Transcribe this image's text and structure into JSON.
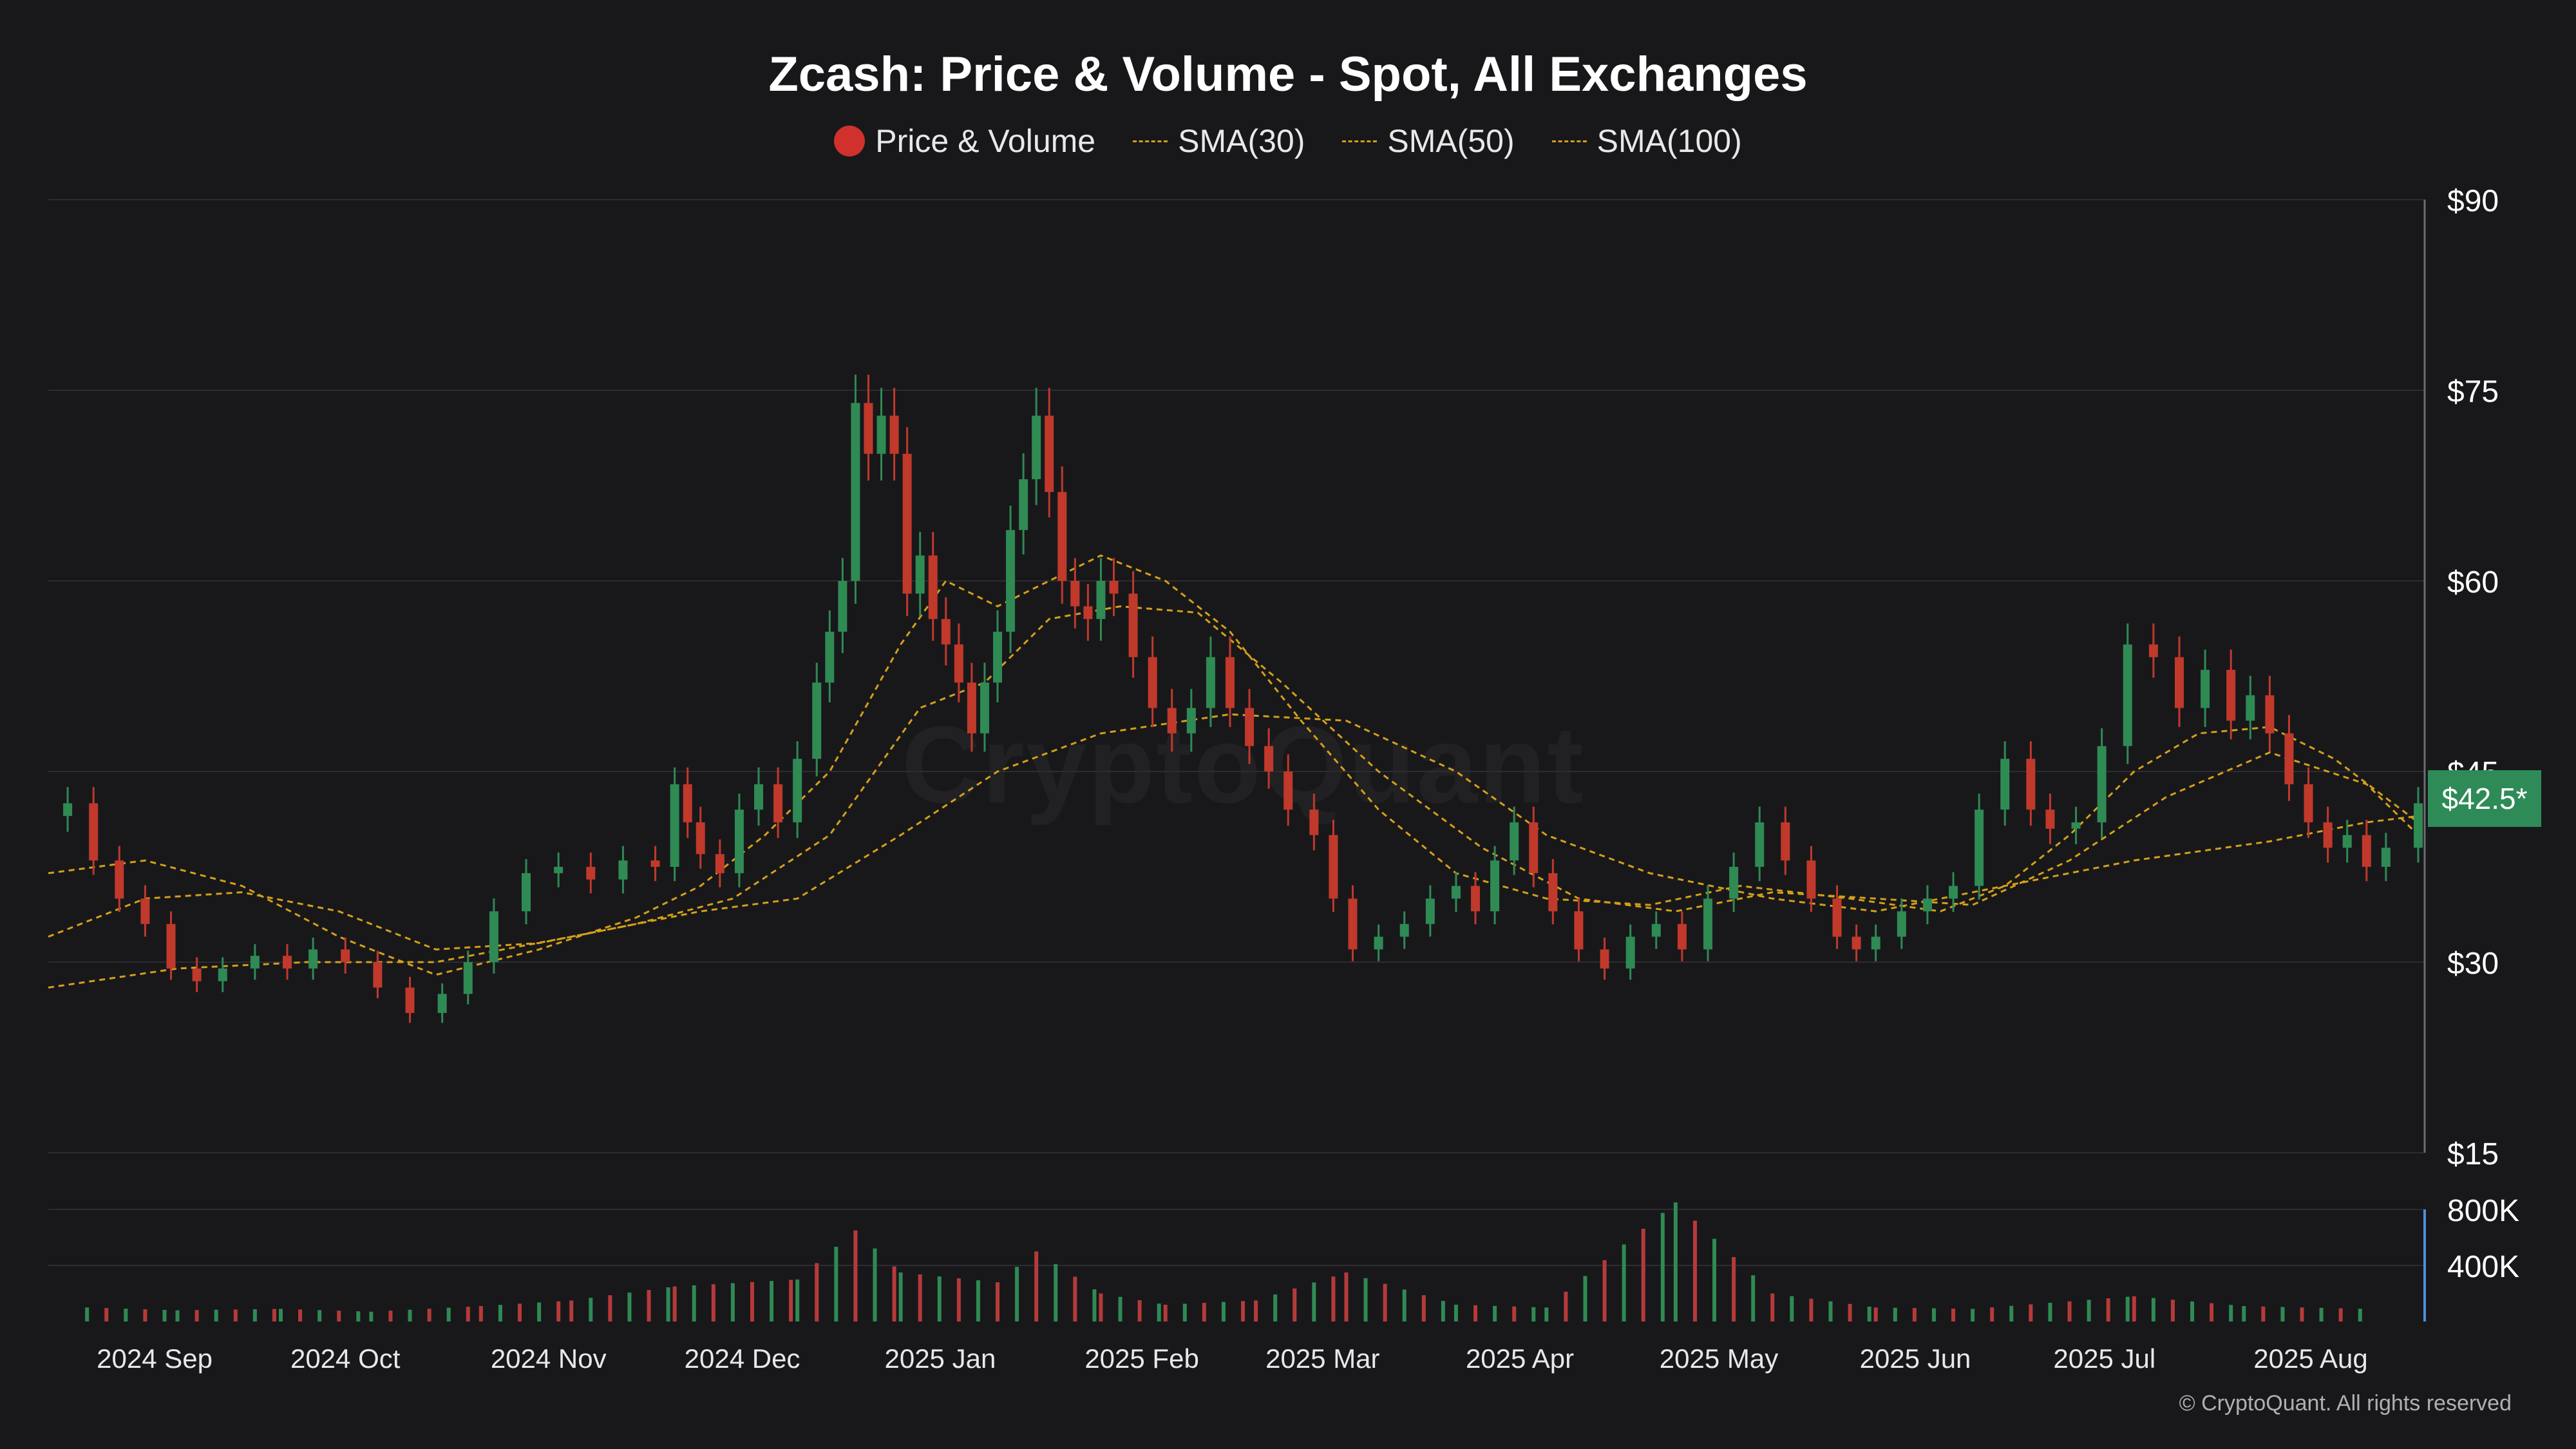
{
  "chart_data": {
    "type": "candlestick",
    "title": "Zcash: Price & Volume - Spot, All Exchanges",
    "legend": [
      {
        "name": "Price & Volume",
        "marker": "dot",
        "color": "#d0312d"
      },
      {
        "name": "SMA(30)",
        "marker": "dashed-line",
        "color": "#d4a017"
      },
      {
        "name": "SMA(50)",
        "marker": "dashed-line",
        "color": "#d4a017"
      },
      {
        "name": "SMA(100)",
        "marker": "dashed-line",
        "color": "#d4a017"
      }
    ],
    "legend_position": "top-center",
    "price_axis": {
      "position": "right",
      "ticks": [
        "$90",
        "$75",
        "$60",
        "$45",
        "$30",
        "$15"
      ],
      "range": [
        15,
        90
      ]
    },
    "volume_axis": {
      "position": "right",
      "ticks": [
        "800K",
        "400K"
      ],
      "range": [
        0,
        800000
      ]
    },
    "x_axis": {
      "range": [
        "2024-08-26",
        "2025-08-28"
      ],
      "ticks": [
        {
          "label": "2024 Sep",
          "date": "2024-09-01"
        },
        {
          "label": "2024 Oct",
          "date": "2024-10-01"
        },
        {
          "label": "2024 Nov",
          "date": "2024-11-01"
        },
        {
          "label": "2024 Dec",
          "date": "2024-12-01"
        },
        {
          "label": "2025 Jan",
          "date": "2025-01-01"
        },
        {
          "label": "2025 Feb",
          "date": "2025-02-01"
        },
        {
          "label": "2025 Mar",
          "date": "2025-03-01"
        },
        {
          "label": "2025 Apr",
          "date": "2025-04-01"
        },
        {
          "label": "2025 May",
          "date": "2025-05-01"
        },
        {
          "label": "2025 Jun",
          "date": "2025-06-01"
        },
        {
          "label": "2025 Jul",
          "date": "2025-07-01"
        },
        {
          "label": "2025 Aug",
          "date": "2025-08-01"
        }
      ]
    },
    "grid": true,
    "current_price_label": "$42.5*",
    "price_series": {
      "name": "Price & Volume",
      "points": [
        [
          "2024-08-26",
          41.5
        ],
        [
          "2024-08-29",
          42.5
        ],
        [
          "2024-09-02",
          38
        ],
        [
          "2024-09-06",
          35
        ],
        [
          "2024-09-10",
          33
        ],
        [
          "2024-09-14",
          29.5
        ],
        [
          "2024-09-18",
          28.5
        ],
        [
          "2024-09-22",
          29.5
        ],
        [
          "2024-09-27",
          30.5
        ],
        [
          "2024-10-02",
          29.5
        ],
        [
          "2024-10-06",
          31
        ],
        [
          "2024-10-11",
          30
        ],
        [
          "2024-10-16",
          28
        ],
        [
          "2024-10-21",
          26
        ],
        [
          "2024-10-26",
          27.5
        ],
        [
          "2024-10-30",
          30
        ],
        [
          "2024-11-03",
          34
        ],
        [
          "2024-11-08",
          37
        ],
        [
          "2024-11-13",
          37.5
        ],
        [
          "2024-11-18",
          36.5
        ],
        [
          "2024-11-23",
          38
        ],
        [
          "2024-11-28",
          37.5
        ],
        [
          "2024-12-01",
          44
        ],
        [
          "2024-12-03",
          41
        ],
        [
          "2024-12-05",
          38.5
        ],
        [
          "2024-12-08",
          37
        ],
        [
          "2024-12-11",
          42
        ],
        [
          "2024-12-14",
          44
        ],
        [
          "2024-12-17",
          41
        ],
        [
          "2024-12-20",
          46
        ],
        [
          "2024-12-23",
          52
        ],
        [
          "2024-12-25",
          56
        ],
        [
          "2024-12-27",
          60
        ],
        [
          "2024-12-29",
          74
        ],
        [
          "2024-12-31",
          70
        ],
        [
          "2025-01-02",
          73
        ],
        [
          "2025-01-04",
          70
        ],
        [
          "2025-01-06",
          59
        ],
        [
          "2025-01-08",
          62
        ],
        [
          "2025-01-10",
          57
        ],
        [
          "2025-01-12",
          55
        ],
        [
          "2025-01-14",
          52
        ],
        [
          "2025-01-16",
          48
        ],
        [
          "2025-01-18",
          52
        ],
        [
          "2025-01-20",
          56
        ],
        [
          "2025-01-22",
          64
        ],
        [
          "2025-01-24",
          68
        ],
        [
          "2025-01-26",
          73
        ],
        [
          "2025-01-28",
          67
        ],
        [
          "2025-01-30",
          60
        ],
        [
          "2025-02-01",
          58
        ],
        [
          "2025-02-03",
          57
        ],
        [
          "2025-02-05",
          60
        ],
        [
          "2025-02-07",
          59
        ],
        [
          "2025-02-10",
          54
        ],
        [
          "2025-02-13",
          50
        ],
        [
          "2025-02-16",
          48
        ],
        [
          "2025-02-19",
          50
        ],
        [
          "2025-02-22",
          54
        ],
        [
          "2025-02-25",
          50
        ],
        [
          "2025-02-28",
          47
        ],
        [
          "2025-03-03",
          45
        ],
        [
          "2025-03-06",
          42
        ],
        [
          "2025-03-10",
          40
        ],
        [
          "2025-03-13",
          35
        ],
        [
          "2025-03-16",
          31
        ],
        [
          "2025-03-20",
          32
        ],
        [
          "2025-03-24",
          33
        ],
        [
          "2025-03-28",
          35
        ],
        [
          "2025-04-01",
          36
        ],
        [
          "2025-04-04",
          34
        ],
        [
          "2025-04-07",
          38
        ],
        [
          "2025-04-10",
          41
        ],
        [
          "2025-04-13",
          37
        ],
        [
          "2025-04-16",
          34
        ],
        [
          "2025-04-20",
          31
        ],
        [
          "2025-04-24",
          29.5
        ],
        [
          "2025-04-28",
          32
        ],
        [
          "2025-05-02",
          33
        ],
        [
          "2025-05-06",
          31
        ],
        [
          "2025-05-10",
          35
        ],
        [
          "2025-05-14",
          37.5
        ],
        [
          "2025-05-18",
          41
        ],
        [
          "2025-05-22",
          38
        ],
        [
          "2025-05-26",
          35
        ],
        [
          "2025-05-30",
          32
        ],
        [
          "2025-06-02",
          31
        ],
        [
          "2025-06-05",
          32
        ],
        [
          "2025-06-09",
          34
        ],
        [
          "2025-06-13",
          35
        ],
        [
          "2025-06-17",
          36
        ],
        [
          "2025-06-21",
          42
        ],
        [
          "2025-06-25",
          46
        ],
        [
          "2025-06-29",
          42
        ],
        [
          "2025-07-02",
          40.5
        ],
        [
          "2025-07-06",
          41
        ],
        [
          "2025-07-10",
          47
        ],
        [
          "2025-07-14",
          55
        ],
        [
          "2025-07-18",
          54
        ],
        [
          "2025-07-22",
          50
        ],
        [
          "2025-07-26",
          53
        ],
        [
          "2025-07-30",
          49
        ],
        [
          "2025-08-02",
          51
        ],
        [
          "2025-08-05",
          48
        ],
        [
          "2025-08-08",
          44
        ],
        [
          "2025-08-11",
          41
        ],
        [
          "2025-08-14",
          39
        ],
        [
          "2025-08-17",
          40
        ],
        [
          "2025-08-20",
          37.5
        ],
        [
          "2025-08-23",
          39
        ],
        [
          "2025-08-28",
          42.5
        ]
      ]
    },
    "sma_series": [
      {
        "name": "SMA(30)",
        "points": [
          [
            "2024-08-26",
            37
          ],
          [
            "2024-09-10",
            38
          ],
          [
            "2024-09-25",
            36
          ],
          [
            "2024-10-10",
            32
          ],
          [
            "2024-10-25",
            29
          ],
          [
            "2024-11-10",
            31
          ],
          [
            "2024-11-25",
            33.5
          ],
          [
            "2024-12-05",
            36
          ],
          [
            "2024-12-15",
            40
          ],
          [
            "2024-12-25",
            45
          ],
          [
            "2025-01-05",
            55
          ],
          [
            "2025-01-12",
            60
          ],
          [
            "2025-01-20",
            58
          ],
          [
            "2025-01-28",
            60
          ],
          [
            "2025-02-05",
            62
          ],
          [
            "2025-02-15",
            60
          ],
          [
            "2025-02-25",
            56
          ],
          [
            "2025-03-08",
            49
          ],
          [
            "2025-03-20",
            42
          ],
          [
            "2025-04-01",
            37
          ],
          [
            "2025-04-15",
            35
          ],
          [
            "2025-05-01",
            34.5
          ],
          [
            "2025-05-15",
            36
          ],
          [
            "2025-06-01",
            35
          ],
          [
            "2025-06-15",
            34
          ],
          [
            "2025-06-25",
            36
          ],
          [
            "2025-07-05",
            40
          ],
          [
            "2025-07-15",
            45
          ],
          [
            "2025-07-25",
            48
          ],
          [
            "2025-08-05",
            48.5
          ],
          [
            "2025-08-15",
            46
          ],
          [
            "2025-08-28",
            41
          ]
        ]
      },
      {
        "name": "SMA(50)",
        "points": [
          [
            "2024-08-26",
            32
          ],
          [
            "2024-09-10",
            35
          ],
          [
            "2024-09-25",
            35.5
          ],
          [
            "2024-10-10",
            34
          ],
          [
            "2024-10-25",
            31
          ],
          [
            "2024-11-10",
            31.5
          ],
          [
            "2024-11-25",
            33
          ],
          [
            "2024-12-10",
            35
          ],
          [
            "2024-12-25",
            40
          ],
          [
            "2025-01-08",
            50
          ],
          [
            "2025-01-18",
            52
          ],
          [
            "2025-01-28",
            57
          ],
          [
            "2025-02-08",
            58
          ],
          [
            "2025-02-20",
            57.5
          ],
          [
            "2025-03-05",
            52
          ],
          [
            "2025-03-20",
            45
          ],
          [
            "2025-04-05",
            39
          ],
          [
            "2025-04-20",
            35
          ],
          [
            "2025-05-05",
            34
          ],
          [
            "2025-05-20",
            35.5
          ],
          [
            "2025-06-05",
            35
          ],
          [
            "2025-06-20",
            34.5
          ],
          [
            "2025-07-05",
            38
          ],
          [
            "2025-07-20",
            43
          ],
          [
            "2025-08-05",
            46.5
          ],
          [
            "2025-08-20",
            44
          ],
          [
            "2025-08-28",
            40
          ]
        ]
      },
      {
        "name": "SMA(100)",
        "points": [
          [
            "2024-08-26",
            28
          ],
          [
            "2024-09-15",
            29.5
          ],
          [
            "2024-10-05",
            30
          ],
          [
            "2024-10-25",
            30
          ],
          [
            "2024-11-15",
            32
          ],
          [
            "2024-12-05",
            34
          ],
          [
            "2024-12-20",
            35
          ],
          [
            "2025-01-05",
            40
          ],
          [
            "2025-01-20",
            45
          ],
          [
            "2025-02-05",
            48
          ],
          [
            "2025-02-25",
            49.5
          ],
          [
            "2025-03-15",
            49
          ],
          [
            "2025-04-01",
            45
          ],
          [
            "2025-04-15",
            40
          ],
          [
            "2025-05-01",
            37
          ],
          [
            "2025-05-20",
            35
          ],
          [
            "2025-06-05",
            34
          ],
          [
            "2025-06-25",
            36
          ],
          [
            "2025-07-15",
            38
          ],
          [
            "2025-08-05",
            39.5
          ],
          [
            "2025-08-20",
            41
          ],
          [
            "2025-08-28",
            41.5
          ]
        ]
      }
    ],
    "volume_series": {
      "name": "Volume",
      "unit": "K",
      "points": [
        [
          "2024-09-01",
          100
        ],
        [
          "2024-09-15",
          80
        ],
        [
          "2024-10-01",
          90
        ],
        [
          "2024-10-15",
          70
        ],
        [
          "2024-11-01",
          110
        ],
        [
          "2024-11-15",
          150
        ],
        [
          "2024-12-01",
          250
        ],
        [
          "2024-12-20",
          300
        ],
        [
          "2024-12-29",
          650
        ],
        [
          "2025-01-05",
          350
        ],
        [
          "2025-01-20",
          280
        ],
        [
          "2025-01-26",
          500
        ],
        [
          "2025-02-05",
          200
        ],
        [
          "2025-02-15",
          120
        ],
        [
          "2025-03-01",
          150
        ],
        [
          "2025-03-15",
          350
        ],
        [
          "2025-04-01",
          120
        ],
        [
          "2025-04-15",
          100
        ],
        [
          "2025-05-05",
          850
        ],
        [
          "2025-05-20",
          200
        ],
        [
          "2025-06-05",
          100
        ],
        [
          "2025-06-20",
          90
        ],
        [
          "2025-07-15",
          180
        ],
        [
          "2025-08-01",
          110
        ],
        [
          "2025-08-20",
          90
        ]
      ]
    }
  },
  "watermark": "CryptoQuant",
  "copyright": "© CryptoQuant. All rights reserved"
}
